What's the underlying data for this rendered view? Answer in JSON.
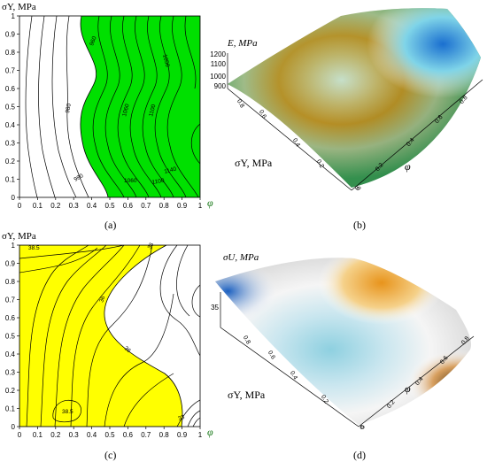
{
  "panel_labels": [
    "(a)",
    "(b)",
    "(c)",
    "(d)"
  ],
  "chart_data": [
    {
      "panel": "(a)",
      "type": "contour",
      "xlabel": "φ",
      "ylabel": "σY, MPa",
      "xticks": [
        "0",
        "0.1",
        "0.2",
        "0.3",
        "0.4",
        "0.5",
        "0.6",
        "0.7",
        "0.8",
        "0.9",
        "1"
      ],
      "yticks": [
        "0",
        "0.1",
        "0.2",
        "0.3",
        "0.4",
        "0.5",
        "0.6",
        "0.7",
        "0.8",
        "0.9",
        "1"
      ],
      "xlim": [
        0,
        1
      ],
      "ylim": [
        0,
        1
      ],
      "fill_color": "#00e000",
      "contour_labels": [
        "960",
        "980",
        "980",
        "1050",
        "1060",
        "1100",
        "1060",
        "1100",
        "1140"
      ]
    },
    {
      "panel": "(b)",
      "type": "surface",
      "zlabel": "E, MPa",
      "zticks": [
        "900",
        "1000",
        "1100",
        "1200"
      ],
      "ylabel": "σY, MPa",
      "xlabel": "φ",
      "x_ticks": [
        "0",
        "0.2",
        "0.4",
        "0.6",
        "0.8"
      ],
      "y_ticks": [
        "0",
        "0.2",
        "0.4",
        "0.6",
        "0.8"
      ]
    },
    {
      "panel": "(c)",
      "type": "contour",
      "xlabel": "φ",
      "ylabel": "σY, MPa",
      "xticks": [
        "0",
        "0.1",
        "0.2",
        "0.3",
        "0.4",
        "0.5",
        "0.6",
        "0.7",
        "0.8",
        "0.9",
        "1"
      ],
      "yticks": [
        "0",
        "0.1",
        "0.2",
        "0.3",
        "0.4",
        "0.5",
        "0.6",
        "0.7",
        "0.8",
        "0.9",
        "1"
      ],
      "xlim": [
        0,
        1
      ],
      "ylim": [
        0,
        1
      ],
      "fill_color": "#ffff00",
      "contour_labels": [
        "38.5",
        "36",
        "36",
        "36",
        "38.5",
        "33"
      ]
    },
    {
      "panel": "(d)",
      "type": "surface",
      "zlabel": "σU, MPa",
      "zticks": [
        "35"
      ],
      "ylabel": "σY, MPa",
      "xlabel": "φ",
      "x_ticks": [
        "0",
        "0.2",
        "0.4",
        "0.6",
        "0.8"
      ],
      "y_ticks": [
        "0",
        "0.2",
        "0.4",
        "0.6",
        "0.8"
      ]
    }
  ]
}
